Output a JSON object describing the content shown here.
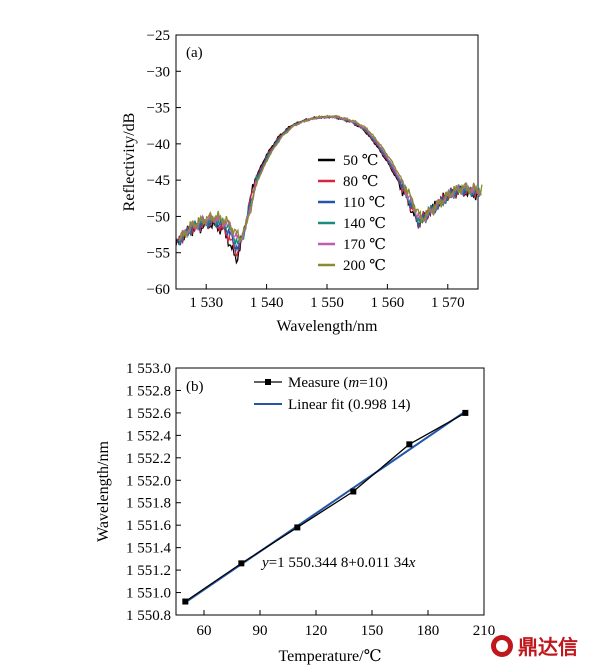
{
  "chart_data": [
    {
      "type": "line",
      "panel_label": "(a)",
      "xlabel": "Wavelength/nm",
      "ylabel": "Reflectivity/dB",
      "xlim": [
        1525,
        1575
      ],
      "ylim": [
        -60,
        -25
      ],
      "x_ticks": [
        1530,
        1540,
        1550,
        1560,
        1570
      ],
      "x_tick_labels": [
        "1 530",
        "1 540",
        "1 550",
        "1 560",
        "1 570"
      ],
      "y_ticks": [
        -25,
        -30,
        -35,
        -40,
        -45,
        -50,
        -55,
        -60
      ],
      "y_tick_labels": [
        "−25",
        "−30",
        "−35",
        "−40",
        "−45",
        "−50",
        "−55",
        "−60"
      ],
      "legend_position": "right",
      "series": [
        {
          "name": "50 ℃",
          "color": "#000000",
          "shift": 0.0,
          "x": [
            1525,
            1527,
            1529,
            1531,
            1533,
            1534,
            1535,
            1536,
            1537,
            1538,
            1540,
            1542,
            1544,
            1546,
            1548,
            1550,
            1551,
            1552,
            1554,
            1556,
            1558,
            1560,
            1562,
            1564,
            1565,
            1566,
            1568,
            1570,
            1572,
            1575
          ],
          "y": [
            -54,
            -52,
            -51.5,
            -51,
            -52,
            -54,
            -56,
            -53,
            -49,
            -45,
            -41.5,
            -39,
            -37.5,
            -36.8,
            -36.4,
            -36.3,
            -36.3,
            -36.5,
            -37,
            -38,
            -40,
            -42.5,
            -45.5,
            -49,
            -51,
            -50,
            -48.5,
            -47,
            -46.5,
            -47
          ]
        },
        {
          "name": "80 ℃",
          "color": "#d7263d",
          "shift": 0.35,
          "x": [
            1525,
            1527,
            1529,
            1531,
            1533,
            1534,
            1535,
            1536,
            1537,
            1538,
            1540,
            1542,
            1544,
            1546,
            1548,
            1550,
            1551,
            1552,
            1554,
            1556,
            1558,
            1560,
            1562,
            1564,
            1565,
            1566,
            1568,
            1570,
            1572,
            1575
          ],
          "y": [
            -53.8,
            -52,
            -51.2,
            -50.8,
            -52,
            -53.5,
            -55,
            -52.5,
            -48.5,
            -45,
            -41.5,
            -39,
            -37.5,
            -36.8,
            -36.4,
            -36.3,
            -36.3,
            -36.5,
            -37,
            -38,
            -40,
            -42.5,
            -45.5,
            -49,
            -51,
            -50,
            -48.5,
            -47,
            -46.4,
            -46.8
          ]
        },
        {
          "name": "110 ℃",
          "color": "#2356a8",
          "shift": 0.66,
          "x": [
            1525,
            1527,
            1529,
            1531,
            1533,
            1534,
            1535,
            1536,
            1537,
            1538,
            1540,
            1542,
            1544,
            1546,
            1548,
            1550,
            1551,
            1552,
            1554,
            1556,
            1558,
            1560,
            1562,
            1564,
            1565,
            1566,
            1568,
            1570,
            1572,
            1575
          ],
          "y": [
            -53.6,
            -51.8,
            -51,
            -50.6,
            -51.5,
            -53,
            -54.5,
            -52,
            -48.5,
            -45,
            -41.5,
            -39,
            -37.5,
            -36.8,
            -36.4,
            -36.3,
            -36.3,
            -36.5,
            -37,
            -38,
            -40,
            -42.5,
            -45.5,
            -49,
            -51,
            -50,
            -48.5,
            -47,
            -46.3,
            -46.7
          ]
        },
        {
          "name": "140 ℃",
          "color": "#1a8c7e",
          "shift": 1.0,
          "x": [
            1525,
            1527,
            1529,
            1531,
            1533,
            1534,
            1535,
            1536,
            1537,
            1538,
            1540,
            1542,
            1544,
            1546,
            1548,
            1550,
            1551,
            1552,
            1554,
            1556,
            1558,
            1560,
            1562,
            1564,
            1565,
            1566,
            1568,
            1570,
            1572,
            1575
          ],
          "y": [
            -53.4,
            -51.6,
            -50.8,
            -50.4,
            -51.2,
            -52.5,
            -54,
            -51.8,
            -48.3,
            -45,
            -41.5,
            -39,
            -37.5,
            -36.8,
            -36.4,
            -36.3,
            -36.3,
            -36.5,
            -37,
            -38,
            -40,
            -42.5,
            -45.5,
            -49,
            -50.8,
            -50,
            -48.5,
            -47,
            -46.2,
            -46.6
          ]
        },
        {
          "name": "170 ℃",
          "color": "#c45ab3",
          "shift": 1.3,
          "x": [
            1525,
            1527,
            1529,
            1531,
            1533,
            1534,
            1535,
            1536,
            1537,
            1538,
            1540,
            1542,
            1544,
            1546,
            1548,
            1550,
            1551,
            1552,
            1554,
            1556,
            1558,
            1560,
            1562,
            1564,
            1565,
            1566,
            1568,
            1570,
            1572,
            1575
          ],
          "y": [
            -53.2,
            -51.4,
            -50.6,
            -50.2,
            -51,
            -52.2,
            -53.5,
            -51.5,
            -48,
            -45,
            -41.5,
            -39,
            -37.5,
            -36.8,
            -36.4,
            -36.3,
            -36.3,
            -36.5,
            -37,
            -38,
            -40,
            -42.5,
            -45.5,
            -49,
            -50.6,
            -49.8,
            -48.3,
            -46.8,
            -46.1,
            -46.5
          ]
        },
        {
          "name": "200 ℃",
          "color": "#8c8a2e",
          "shift": 1.6,
          "x": [
            1525,
            1527,
            1529,
            1531,
            1533,
            1534,
            1535,
            1536,
            1537,
            1538,
            1540,
            1542,
            1544,
            1546,
            1548,
            1550,
            1551,
            1552,
            1554,
            1556,
            1558,
            1560,
            1562,
            1564,
            1565,
            1566,
            1568,
            1570,
            1572,
            1575
          ],
          "y": [
            -53,
            -51.2,
            -50.4,
            -50,
            -50.8,
            -52,
            -53,
            -51.2,
            -47.8,
            -44.8,
            -41.3,
            -38.9,
            -37.4,
            -36.7,
            -36.3,
            -36.2,
            -36.2,
            -36.4,
            -36.9,
            -37.9,
            -39.9,
            -42.3,
            -45.3,
            -48.8,
            -50.4,
            -49.6,
            -48.1,
            -46.6,
            -46,
            -46.4
          ]
        }
      ]
    },
    {
      "type": "scatter",
      "panel_label": "(b)",
      "xlabel": "Temperature/℃",
      "ylabel": "Wavelength/nm",
      "xlim": [
        45,
        210
      ],
      "ylim": [
        1550.8,
        1553.0
      ],
      "x_ticks": [
        60,
        90,
        120,
        150,
        180,
        210
      ],
      "x_tick_labels": [
        "60",
        "90",
        "120",
        "150",
        "180",
        "210"
      ],
      "y_ticks": [
        1550.8,
        1551.0,
        1551.2,
        1551.4,
        1551.6,
        1551.8,
        1552.0,
        1552.2,
        1552.4,
        1552.6,
        1552.8,
        1553.0
      ],
      "y_tick_labels": [
        "1 550.8",
        "1 551.0",
        "1 551.2",
        "1 551.4",
        "1 551.6",
        "1 551.8",
        "1 552.0",
        "1 552.2",
        "1 552.4",
        "1 552.6",
        "1 552.8",
        "1 553.0"
      ],
      "legend_position": "top-right",
      "series": [
        {
          "name": "Measure (m=10)",
          "color": "#000000",
          "x": [
            50,
            80,
            110,
            140,
            170,
            200
          ],
          "y": [
            1550.92,
            1551.26,
            1551.58,
            1551.9,
            1552.32,
            1552.6
          ]
        },
        {
          "name": "Linear fit (0.998 14)",
          "color": "#2356a8",
          "x": [
            50,
            200
          ],
          "y": [
            1550.9118,
            1552.6128
          ]
        }
      ],
      "legend": {
        "measure_prefix": "Measure (",
        "measure_var": "m",
        "measure_suffix": "=10)",
        "fit_label": "Linear fit (0.998 14)"
      },
      "equation": {
        "var_y": "y",
        "body": "=1 550.344 8+0.011 34",
        "var_x": "x"
      }
    }
  ],
  "watermark": {
    "text": "鼎达信",
    "color": "#c0171d"
  }
}
